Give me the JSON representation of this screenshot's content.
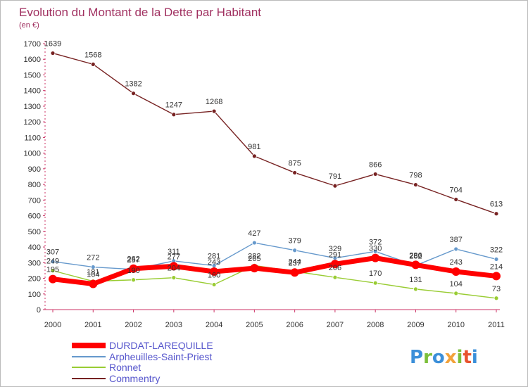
{
  "chart_data": {
    "type": "line",
    "title": "Evolution du Montant de la Dette par Habitant",
    "subtitle": "(en €)",
    "x": [
      "2000",
      "2001",
      "2002",
      "2003",
      "2004",
      "2005",
      "2006",
      "2007",
      "2008",
      "2009",
      "2010",
      "2011"
    ],
    "ylim": [
      0,
      1700
    ],
    "yticks": [
      0,
      100,
      200,
      300,
      400,
      500,
      600,
      700,
      800,
      900,
      1000,
      1100,
      1200,
      1300,
      1400,
      1500,
      1600,
      1700
    ],
    "grid": false,
    "legend_position": "bottom-left",
    "series": [
      {
        "name": "DURDAT-LAREQUILLE",
        "color": "#ff0000",
        "values": [
          195,
          164,
          262,
          277,
          243,
          265,
          237,
          291,
          330,
          286,
          243,
          214
        ]
      },
      {
        "name": "Arpheuilles-Saint-Priest",
        "color": "#6699cc",
        "values": [
          307,
          272,
          257,
          311,
          281,
          427,
          379,
          329,
          372,
          282,
          387,
          322
        ]
      },
      {
        "name": "Ronnet",
        "color": "#99cc33",
        "values": [
          249,
          181,
          190,
          204,
          160,
          282,
          244,
          206,
          170,
          131,
          104,
          73
        ]
      },
      {
        "name": "Commentry",
        "color": "#772222",
        "values": [
          1639,
          1568,
          1382,
          1247,
          1268,
          981,
          875,
          791,
          866,
          798,
          704,
          613
        ]
      }
    ],
    "point_labels": [
      [
        "195",
        "164",
        "262",
        "277",
        "243",
        "265",
        "237",
        "291",
        "330",
        "286",
        "243",
        "214"
      ],
      [
        "307",
        "272",
        "257",
        "311",
        "281",
        "427",
        "379",
        "329",
        "372",
        "282",
        "387",
        "322"
      ],
      [
        "249",
        "181",
        "190",
        "204",
        "160",
        "282",
        "244",
        "206",
        "170",
        "131",
        "104",
        "73"
      ],
      [
        "1639",
        "1568",
        "1382",
        "1247",
        "1268",
        "981",
        "875",
        "791",
        "866",
        "798",
        "704",
        "613"
      ]
    ]
  },
  "watermark": "Proxiti"
}
